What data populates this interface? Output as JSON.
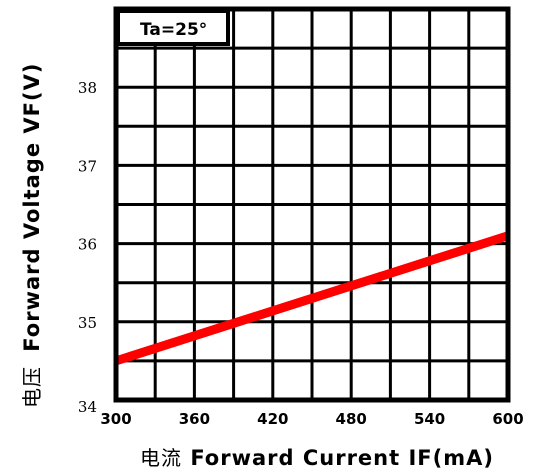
{
  "chart_data": {
    "type": "line",
    "xlabel_cn": "电流",
    "xlabel": "Forward Current  IF(mA)",
    "ylabel_cn": "电压",
    "ylabel": "Forward  Voltage  VF(V)",
    "condition": "Ta=25°",
    "xlim": [
      300,
      600
    ],
    "ylim": [
      34,
      39
    ],
    "x_ticks": [
      "300",
      "360",
      "420",
      "480",
      "540",
      "600"
    ],
    "y_ticks": [
      "34",
      "35",
      "36",
      "37",
      "38"
    ],
    "grid": true,
    "series": [
      {
        "color": "#ff0000",
        "x": [
          300,
          600
        ],
        "y": [
          34.5,
          36.1
        ]
      }
    ]
  }
}
